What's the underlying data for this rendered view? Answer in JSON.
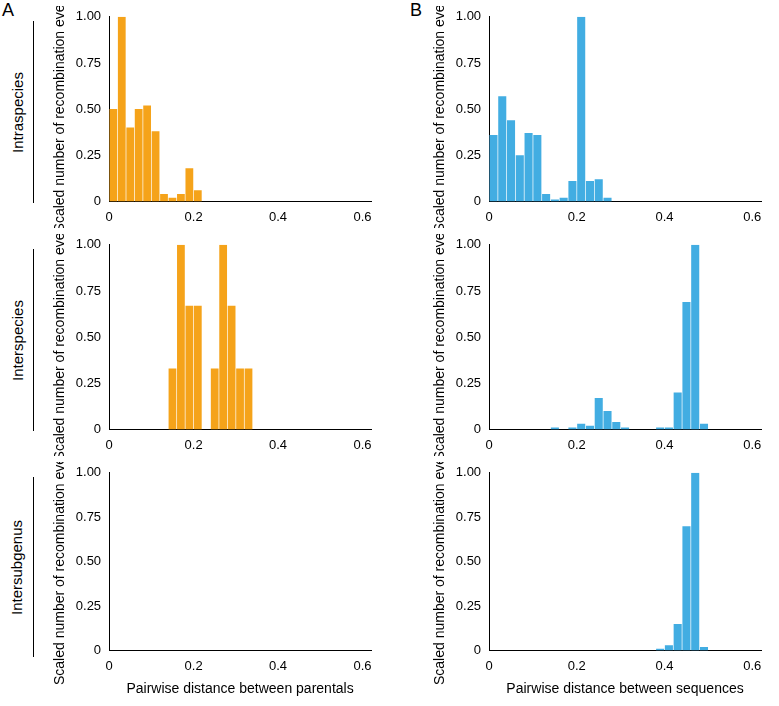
{
  "chart_data": [
    {
      "type": "histogram",
      "panel": "A",
      "title": "Intraspecies",
      "y_label": "Scaled number of recombination events",
      "bins": [
        0,
        0.02,
        0.04,
        0.06,
        0.08,
        0.1,
        0.12,
        0.14,
        0.16,
        0.18,
        0.2,
        0.22
      ],
      "values": [
        0.5,
        1.0,
        0.4,
        0.5,
        0.52,
        0.38,
        0.04,
        0.02,
        0.04,
        0.18,
        0.06
      ],
      "color": "#f5a31a",
      "xlim": [
        0,
        0.62
      ],
      "xticks": [
        0,
        0.2,
        0.4,
        0.6
      ],
      "ylim": [
        0,
        1
      ],
      "yticks": [
        0,
        0.25,
        {
          "value": 0.5,
          "label": "0.50"
        },
        0.75,
        {
          "value": 1,
          "label": "1.00"
        }
      ]
    },
    {
      "type": "histogram",
      "title": "Interspecies",
      "y_label": "Scaled number of recombination events",
      "bins": [
        0.14,
        0.16,
        0.18,
        0.2,
        0.22,
        0.24,
        0.26,
        0.28,
        0.3,
        0.32,
        0.34
      ],
      "values": [
        0.33,
        1.0,
        0.67,
        0.67,
        0,
        0.33,
        1.0,
        0.67,
        0.33,
        0.33
      ],
      "color": "#f5a31a",
      "xlim": [
        0,
        0.62
      ],
      "xticks": [
        0,
        0.2,
        0.4,
        0.6
      ],
      "ylim": [
        0,
        1
      ],
      "yticks": [
        0,
        0.25,
        {
          "value": 0.5,
          "label": "0.50"
        },
        0.75,
        {
          "value": 1,
          "label": "1.00"
        }
      ]
    },
    {
      "type": "histogram",
      "title": "Intersubgenus",
      "y_label": "Scaled number of recombination events",
      "x_label": "Pairwise distance between parentals",
      "color": "#f5a31a",
      "xlim": [
        0,
        0.62
      ],
      "xticks": [
        0,
        0.2,
        0.4,
        0.6
      ],
      "ylim": [
        0,
        1
      ],
      "yticks": [
        0,
        0.25,
        {
          "value": 0.5,
          "label": "0.50"
        },
        0.75,
        {
          "value": 1,
          "label": "1.00"
        }
      ]
    },
    {
      "type": "histogram",
      "panel": "B",
      "y_label": "Scaled number of recombination events",
      "bins": [
        0,
        0.02,
        0.04,
        0.06,
        0.08,
        0.1,
        0.12,
        0.14,
        0.16,
        0.18,
        0.2,
        0.22,
        0.24,
        0.26,
        0.28
      ],
      "values": [
        0.36,
        0.57,
        0.44,
        0.25,
        0.37,
        0.36,
        0.04,
        0.01,
        0.02,
        0.11,
        1.0,
        0.11,
        0.12,
        0.02
      ],
      "color": "#42ade2",
      "xlim": [
        0,
        0.62
      ],
      "xticks": [
        0,
        0.2,
        0.4,
        0.6
      ],
      "ylim": [
        0,
        1
      ],
      "yticks": [
        0,
        0.25,
        {
          "value": 0.5,
          "label": "0.50"
        },
        0.75,
        {
          "value": 1,
          "label": "1.00"
        }
      ]
    },
    {
      "type": "histogram",
      "y_label": "Scaled number of recombination events",
      "bins": [
        0.14,
        0.16,
        0.18,
        0.2,
        0.22,
        0.24,
        0.26,
        0.28,
        0.3,
        0.32,
        0.34,
        0.36,
        0.38,
        0.4,
        0.42,
        0.44,
        0.46,
        0.48,
        0.5
      ],
      "values": [
        0.01,
        0,
        0.01,
        0.03,
        0.02,
        0.17,
        0.1,
        0.04,
        0.01,
        0,
        0,
        0,
        0.01,
        0.01,
        0.2,
        0.69,
        1.0,
        0.03
      ],
      "color": "#42ade2",
      "xlim": [
        0,
        0.62
      ],
      "xticks": [
        0,
        0.2,
        0.4,
        0.6
      ],
      "ylim": [
        0,
        1
      ],
      "yticks": [
        0,
        0.25,
        {
          "value": 0.5,
          "label": "0.50"
        },
        0.75,
        {
          "value": 1,
          "label": "1.00"
        }
      ]
    },
    {
      "type": "histogram",
      "y_label": "Scaled number of recombination events",
      "x_label": "Pairwise distance between sequences",
      "bins": [
        0.38,
        0.4,
        0.42,
        0.44,
        0.46,
        0.48,
        0.5
      ],
      "values": [
        0.01,
        0.03,
        0.15,
        0.7,
        1.0,
        0.02
      ],
      "color": "#42ade2",
      "xlim": [
        0,
        0.62
      ],
      "xticks": [
        0,
        0.2,
        0.4,
        0.6
      ],
      "ylim": [
        0,
        1
      ],
      "yticks": [
        0,
        0.25,
        {
          "value": 0.5,
          "label": "0.50"
        },
        0.75,
        {
          "value": 1,
          "label": "1.00"
        }
      ]
    }
  ]
}
